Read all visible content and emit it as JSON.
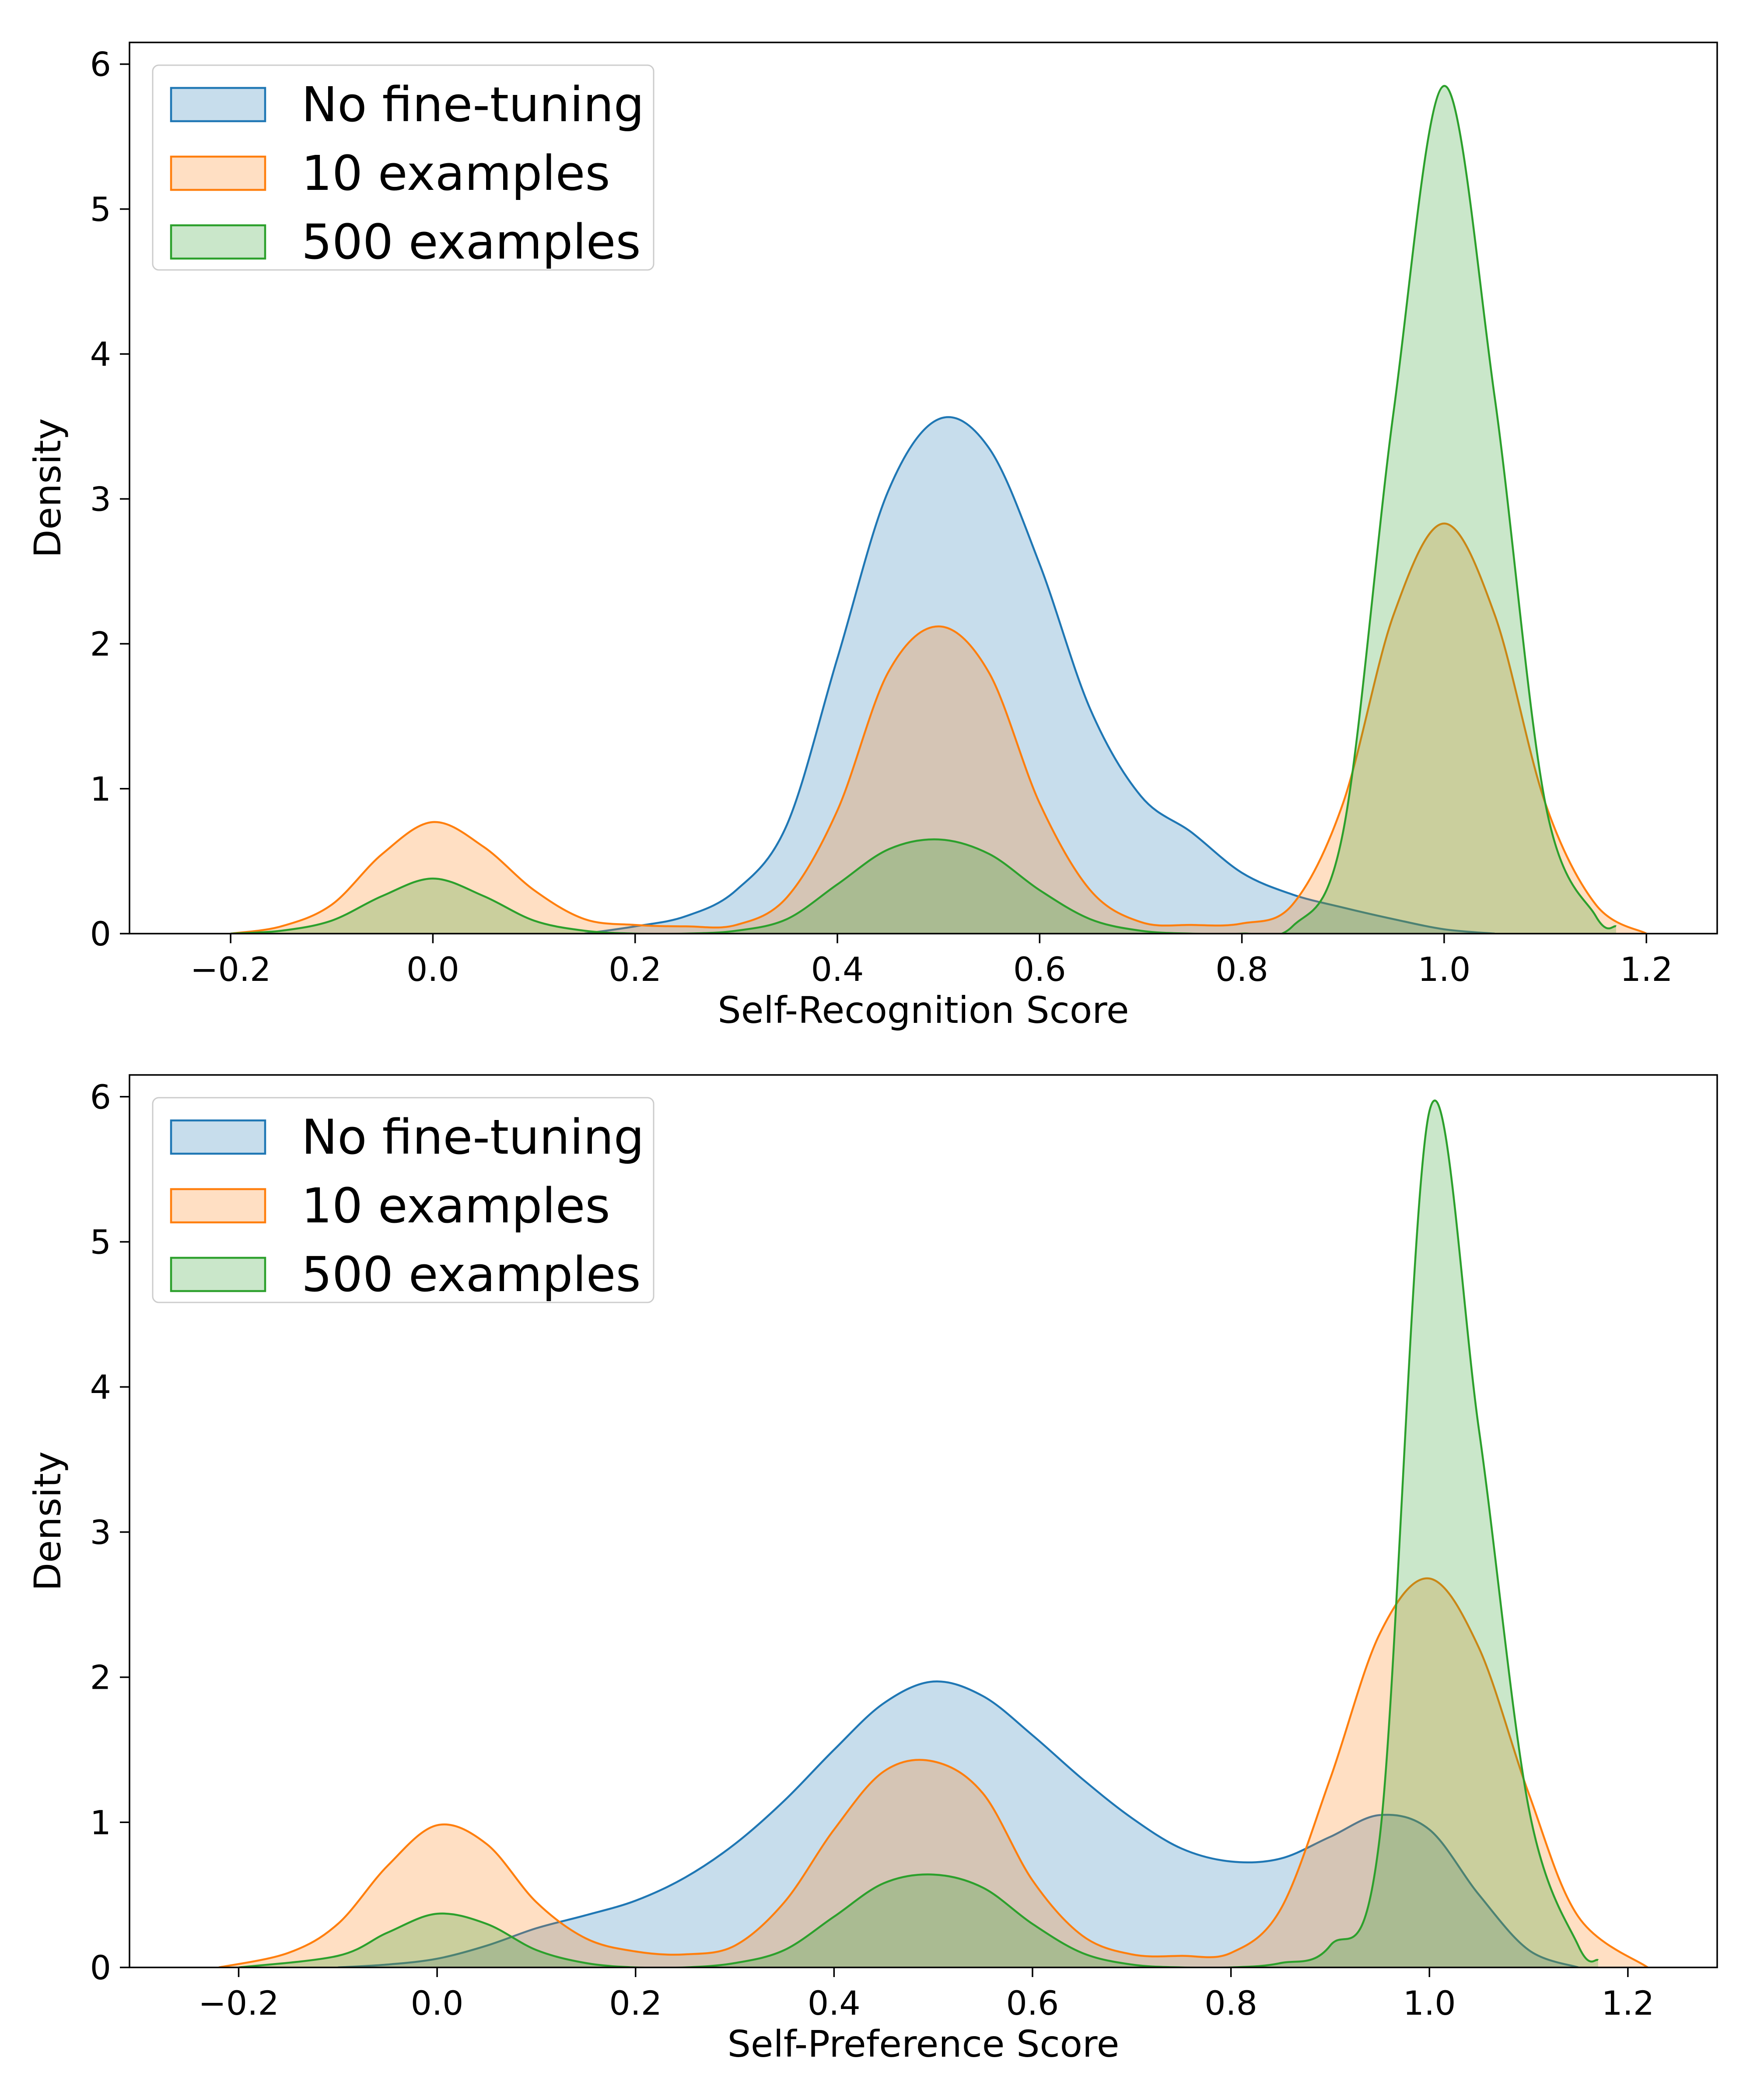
{
  "chart_data": [
    {
      "type": "area",
      "title": "",
      "xlabel": "Self-Recognition Score",
      "ylabel": "Density",
      "xlim": [
        -0.3,
        1.27
      ],
      "ylim": [
        0,
        6.15
      ],
      "xticks": [
        -0.2,
        0.0,
        0.2,
        0.4,
        0.6,
        0.8,
        1.0,
        1.2
      ],
      "xtick_labels": [
        "−0.2",
        "0.0",
        "0.2",
        "0.4",
        "0.6",
        "0.8",
        "1.0",
        "1.2"
      ],
      "yticks": [
        0,
        1,
        2,
        3,
        4,
        5,
        6
      ],
      "ytick_labels": [
        "0",
        "1",
        "2",
        "3",
        "4",
        "5",
        "6"
      ],
      "grid": false,
      "legend_position": "top-left",
      "series": [
        {
          "name": "No fine-tuning",
          "color": "#1f77b4",
          "fill": "#1f77b4",
          "x": [
            0.15,
            0.2,
            0.25,
            0.3,
            0.35,
            0.4,
            0.45,
            0.5,
            0.55,
            0.6,
            0.65,
            0.7,
            0.75,
            0.8,
            0.85,
            0.9,
            0.95,
            1.0,
            1.05
          ],
          "y": [
            0.0,
            0.05,
            0.12,
            0.3,
            0.75,
            1.9,
            3.05,
            3.55,
            3.35,
            2.55,
            1.55,
            0.95,
            0.7,
            0.42,
            0.27,
            0.18,
            0.1,
            0.03,
            0.0
          ]
        },
        {
          "name": "10 examples",
          "color": "#ff7f0e",
          "fill": "#ff7f0e",
          "x": [
            -0.2,
            -0.15,
            -0.1,
            -0.05,
            0.0,
            0.05,
            0.1,
            0.15,
            0.2,
            0.25,
            0.3,
            0.35,
            0.4,
            0.45,
            0.5,
            0.55,
            0.6,
            0.65,
            0.7,
            0.75,
            0.8,
            0.85,
            0.9,
            0.95,
            1.0,
            1.05,
            1.1,
            1.15,
            1.2
          ],
          "y": [
            0.0,
            0.05,
            0.2,
            0.55,
            0.77,
            0.6,
            0.3,
            0.1,
            0.06,
            0.05,
            0.06,
            0.25,
            0.85,
            1.8,
            2.12,
            1.8,
            0.9,
            0.3,
            0.08,
            0.06,
            0.07,
            0.2,
            0.9,
            2.2,
            2.83,
            2.2,
            0.9,
            0.2,
            0.0
          ]
        },
        {
          "name": "500 examples",
          "color": "#2ca02c",
          "fill": "#2ca02c",
          "x": [
            -0.2,
            -0.15,
            -0.1,
            -0.05,
            0.0,
            0.05,
            0.1,
            0.15,
            0.2,
            0.25,
            0.3,
            0.35,
            0.4,
            0.45,
            0.5,
            0.55,
            0.6,
            0.65,
            0.7,
            0.75,
            0.8,
            0.85,
            0.9,
            0.95,
            1.0,
            1.05,
            1.1,
            1.15,
            1.17
          ],
          "y": [
            0.0,
            0.02,
            0.09,
            0.26,
            0.38,
            0.26,
            0.09,
            0.02,
            0.0,
            0.0,
            0.02,
            0.1,
            0.34,
            0.58,
            0.65,
            0.55,
            0.3,
            0.1,
            0.02,
            0.0,
            0.0,
            0.05,
            0.7,
            3.6,
            5.85,
            3.7,
            0.9,
            0.12,
            0.05
          ]
        }
      ]
    },
    {
      "type": "area",
      "title": "",
      "xlabel": "Self-Preference Score",
      "ylabel": "Density",
      "xlim": [
        -0.31,
        1.29
      ],
      "ylim": [
        0,
        6.15
      ],
      "xticks": [
        -0.2,
        0.0,
        0.2,
        0.4,
        0.6,
        0.8,
        1.0,
        1.2
      ],
      "xtick_labels": [
        "−0.2",
        "0.0",
        "0.2",
        "0.4",
        "0.6",
        "0.8",
        "1.0",
        "1.2"
      ],
      "yticks": [
        0,
        1,
        2,
        3,
        4,
        5,
        6
      ],
      "ytick_labels": [
        "0",
        "1",
        "2",
        "3",
        "4",
        "5",
        "6"
      ],
      "grid": false,
      "legend_position": "top-left",
      "series": [
        {
          "name": "No fine-tuning",
          "color": "#1f77b4",
          "fill": "#1f77b4",
          "x": [
            -0.1,
            -0.05,
            0.0,
            0.05,
            0.1,
            0.15,
            0.2,
            0.25,
            0.3,
            0.35,
            0.4,
            0.45,
            0.5,
            0.55,
            0.6,
            0.65,
            0.7,
            0.75,
            0.8,
            0.85,
            0.9,
            0.95,
            1.0,
            1.05,
            1.1,
            1.15
          ],
          "y": [
            0.0,
            0.02,
            0.06,
            0.15,
            0.27,
            0.36,
            0.46,
            0.62,
            0.85,
            1.15,
            1.5,
            1.82,
            1.97,
            1.87,
            1.6,
            1.3,
            1.03,
            0.82,
            0.73,
            0.75,
            0.9,
            1.05,
            0.95,
            0.5,
            0.12,
            0.0
          ]
        },
        {
          "name": "10 examples",
          "color": "#ff7f0e",
          "fill": "#ff7f0e",
          "x": [
            -0.22,
            -0.15,
            -0.1,
            -0.05,
            0.0,
            0.05,
            0.1,
            0.15,
            0.2,
            0.25,
            0.3,
            0.35,
            0.4,
            0.45,
            0.5,
            0.55,
            0.6,
            0.65,
            0.7,
            0.75,
            0.8,
            0.85,
            0.9,
            0.95,
            1.0,
            1.05,
            1.1,
            1.15,
            1.22
          ],
          "y": [
            0.0,
            0.1,
            0.3,
            0.7,
            0.98,
            0.85,
            0.45,
            0.2,
            0.11,
            0.09,
            0.15,
            0.45,
            0.95,
            1.35,
            1.42,
            1.2,
            0.6,
            0.22,
            0.09,
            0.08,
            0.1,
            0.4,
            1.3,
            2.3,
            2.68,
            2.2,
            1.2,
            0.35,
            0.0
          ]
        },
        {
          "name": "500 examples",
          "color": "#2ca02c",
          "fill": "#2ca02c",
          "x": [
            -0.2,
            -0.1,
            -0.05,
            0.0,
            0.05,
            0.1,
            0.15,
            0.2,
            0.25,
            0.3,
            0.35,
            0.4,
            0.45,
            0.5,
            0.55,
            0.6,
            0.65,
            0.7,
            0.75,
            0.8,
            0.85,
            0.9,
            0.95,
            1.0,
            1.05,
            1.1,
            1.15,
            1.17
          ],
          "y": [
            0.0,
            0.08,
            0.24,
            0.37,
            0.3,
            0.12,
            0.03,
            0.0,
            0.0,
            0.03,
            0.12,
            0.35,
            0.58,
            0.64,
            0.55,
            0.3,
            0.1,
            0.02,
            0.0,
            0.0,
            0.03,
            0.15,
            0.9,
            5.9,
            3.7,
            1.1,
            0.15,
            0.05
          ]
        }
      ]
    }
  ]
}
